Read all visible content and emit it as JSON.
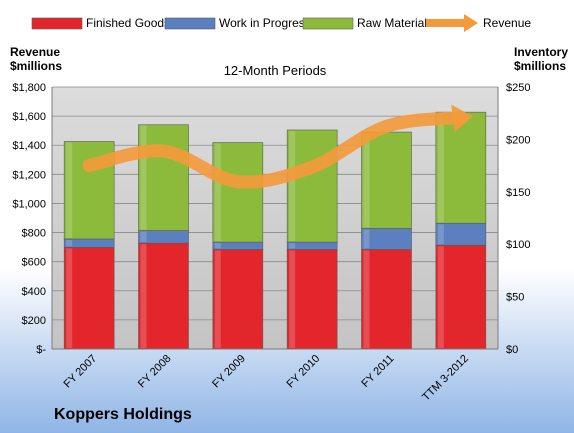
{
  "chart_data": {
    "type": "bar",
    "title": "12-Month Periods",
    "company": "Koppers Holdings",
    "left_axis_label": [
      "Revenue",
      "$millions"
    ],
    "right_axis_label": [
      "Inventory",
      "$millions"
    ],
    "categories": [
      "FY 2007",
      "FY 2008",
      "FY 2009",
      "FY 2010",
      "FY 2011",
      "TTM 3-2012"
    ],
    "stacked": true,
    "series": [
      {
        "name": "Finished Goods",
        "axis": "right",
        "color": "#e3262b",
        "values": [
          97,
          101,
          95,
          95,
          95,
          99
        ]
      },
      {
        "name": "Work in Progress",
        "axis": "right",
        "color": "#5b7fbf",
        "values": [
          8,
          12,
          7,
          7,
          20,
          21
        ]
      },
      {
        "name": "Raw Materials",
        "axis": "right",
        "color": "#8cbb3c",
        "values": [
          93,
          101,
          95,
          107,
          92,
          106
        ]
      },
      {
        "name": "Revenue",
        "axis": "left",
        "type": "line",
        "color": "#f39a3c",
        "values": [
          1260,
          1360,
          1150,
          1250,
          1530,
          1590
        ]
      }
    ],
    "left_axis": {
      "min": 0,
      "max": 1800,
      "step": 200,
      "tick_labels": [
        "$-",
        "$200",
        "$400",
        "$600",
        "$800",
        "$1,000",
        "$1,200",
        "$1,400",
        "$1,600",
        "$1,800"
      ]
    },
    "right_axis": {
      "min": 0,
      "max": 250,
      "step": 50,
      "tick_labels": [
        "$0",
        "$50",
        "$100",
        "$150",
        "$200",
        "$250"
      ]
    },
    "grid": true,
    "legend_position": "top"
  }
}
